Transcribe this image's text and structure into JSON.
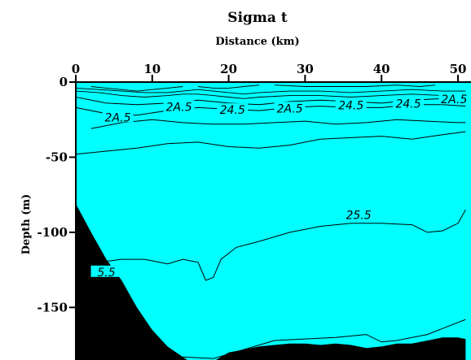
{
  "chart_data": {
    "type": "contour",
    "title": "Sigma t",
    "xlabel": "Distance (km)",
    "ylabel": "Depth (m)",
    "x_axis_position": "top",
    "xlim": [
      0,
      51
    ],
    "ylim": [
      0,
      185
    ],
    "x_ticks": [
      0,
      10,
      20,
      30,
      40,
      50
    ],
    "y_ticks": [
      0,
      -50,
      -100,
      -150
    ],
    "grid": false,
    "fill_color": "#00ffff",
    "bottom_color": "#000000",
    "contour_labels": [
      {
        "text": "2A.5",
        "x": 5.5,
        "depth": 24
      },
      {
        "text": "2A.5",
        "x": 13.5,
        "depth": 17
      },
      {
        "text": "24.5",
        "x": 20.5,
        "depth": 19
      },
      {
        "text": "2A.5",
        "x": 28,
        "depth": 18
      },
      {
        "text": "24.5",
        "x": 36,
        "depth": 16
      },
      {
        "text": "24.5",
        "x": 43.5,
        "depth": 15
      },
      {
        "text": "2A.5",
        "x": 49.5,
        "depth": 12
      },
      {
        "text": "25.5",
        "x": 37,
        "depth": 89
      },
      {
        "text": "5.5",
        "x": 4,
        "depth": 127
      }
    ],
    "contours": [
      [
        [
          0,
          10
        ],
        [
          4,
          14
        ],
        [
          8,
          15
        ],
        [
          12,
          14
        ],
        [
          16,
          12
        ],
        [
          20,
          14
        ],
        [
          24,
          15
        ],
        [
          28,
          13
        ],
        [
          32,
          12
        ],
        [
          36,
          13
        ],
        [
          40,
          14
        ],
        [
          44,
          12
        ],
        [
          48,
          11
        ],
        [
          51,
          12
        ]
      ],
      [
        [
          0,
          17
        ],
        [
          4,
          21
        ],
        [
          8,
          22
        ],
        [
          12,
          19
        ],
        [
          16,
          17
        ],
        [
          20,
          18
        ],
        [
          24,
          19
        ],
        [
          28,
          17
        ],
        [
          32,
          16
        ],
        [
          36,
          17
        ],
        [
          40,
          17
        ],
        [
          44,
          15
        ],
        [
          48,
          15
        ],
        [
          51,
          16
        ]
      ],
      [
        [
          2,
          31
        ],
        [
          6,
          27
        ],
        [
          10,
          25
        ],
        [
          14,
          27
        ],
        [
          18,
          28
        ],
        [
          22,
          28
        ],
        [
          26,
          27
        ],
        [
          30,
          26
        ],
        [
          34,
          28
        ],
        [
          38,
          27
        ],
        [
          42,
          25
        ],
        [
          46,
          26
        ],
        [
          50,
          27
        ],
        [
          51,
          27
        ]
      ],
      [
        [
          0,
          48
        ],
        [
          4,
          46
        ],
        [
          8,
          44
        ],
        [
          12,
          41
        ],
        [
          16,
          40
        ],
        [
          20,
          43
        ],
        [
          24,
          44
        ],
        [
          28,
          42
        ],
        [
          32,
          38
        ],
        [
          36,
          37
        ],
        [
          40,
          36
        ],
        [
          44,
          38
        ],
        [
          48,
          35
        ],
        [
          51,
          33
        ]
      ],
      [
        [
          3,
          120
        ],
        [
          6,
          118
        ],
        [
          9,
          118
        ],
        [
          12,
          121
        ],
        [
          14,
          118
        ],
        [
          16,
          120
        ],
        [
          17,
          132
        ],
        [
          18,
          130
        ],
        [
          19,
          118
        ],
        [
          21,
          110
        ],
        [
          24,
          106
        ],
        [
          28,
          100
        ],
        [
          32,
          96
        ],
        [
          36,
          94
        ],
        [
          40,
          94
        ],
        [
          44,
          95
        ],
        [
          46,
          100
        ],
        [
          48,
          99
        ],
        [
          50,
          94
        ],
        [
          51,
          85
        ]
      ],
      [
        [
          14,
          183
        ],
        [
          18,
          184
        ],
        [
          22,
          178
        ],
        [
          26,
          172
        ],
        [
          30,
          171
        ],
        [
          34,
          170
        ],
        [
          38,
          168
        ],
        [
          40,
          173
        ],
        [
          42,
          172
        ],
        [
          46,
          168
        ],
        [
          50,
          160
        ],
        [
          51,
          158
        ]
      ]
    ],
    "surface_lines": [
      [
        [
          0,
          4
        ],
        [
          3,
          5
        ],
        [
          6,
          6
        ],
        [
          9,
          7
        ],
        [
          12,
          7
        ],
        [
          14,
          6
        ],
        [
          16,
          5
        ],
        [
          18,
          6
        ],
        [
          20,
          7
        ],
        [
          22,
          8
        ],
        [
          24,
          7
        ],
        [
          28,
          6
        ],
        [
          32,
          6
        ],
        [
          36,
          7
        ],
        [
          40,
          6
        ],
        [
          44,
          5
        ],
        [
          48,
          6
        ],
        [
          51,
          6
        ]
      ],
      [
        [
          0,
          6
        ],
        [
          3,
          7
        ],
        [
          6,
          9
        ],
        [
          9,
          10
        ],
        [
          12,
          9
        ],
        [
          14,
          8
        ],
        [
          16,
          8
        ],
        [
          18,
          9
        ],
        [
          20,
          10
        ],
        [
          22,
          11
        ],
        [
          24,
          10
        ],
        [
          28,
          9
        ],
        [
          32,
          9
        ],
        [
          36,
          10
        ],
        [
          40,
          9
        ],
        [
          44,
          8
        ],
        [
          48,
          9
        ],
        [
          51,
          9
        ]
      ],
      [
        [
          2,
          3
        ],
        [
          4,
          4
        ],
        [
          6,
          5
        ],
        [
          8,
          6
        ],
        [
          10,
          5
        ],
        [
          12,
          4
        ],
        [
          14,
          3
        ]
      ],
      [
        [
          16,
          3
        ],
        [
          18,
          4
        ],
        [
          20,
          4
        ],
        [
          22,
          3
        ],
        [
          24,
          2
        ]
      ],
      [
        [
          26,
          2
        ],
        [
          30,
          3
        ],
        [
          34,
          3
        ],
        [
          38,
          3
        ],
        [
          42,
          2
        ],
        [
          45,
          3
        ],
        [
          47,
          2
        ]
      ]
    ],
    "bottom": [
      [
        0,
        81
      ],
      [
        2,
        100
      ],
      [
        4,
        118
      ],
      [
        6,
        132
      ],
      [
        8,
        150
      ],
      [
        10,
        165
      ],
      [
        12,
        176
      ],
      [
        14,
        183
      ],
      [
        16,
        190
      ],
      [
        18,
        186
      ],
      [
        20,
        180
      ],
      [
        22,
        178
      ],
      [
        24,
        176
      ],
      [
        26,
        175
      ],
      [
        28,
        174
      ],
      [
        30,
        174
      ],
      [
        32,
        175
      ],
      [
        34,
        174
      ],
      [
        36,
        175
      ],
      [
        38,
        177
      ],
      [
        40,
        176
      ],
      [
        42,
        174
      ],
      [
        44,
        174
      ],
      [
        46,
        172
      ],
      [
        48,
        170
      ],
      [
        50,
        170
      ],
      [
        51,
        171
      ]
    ]
  }
}
